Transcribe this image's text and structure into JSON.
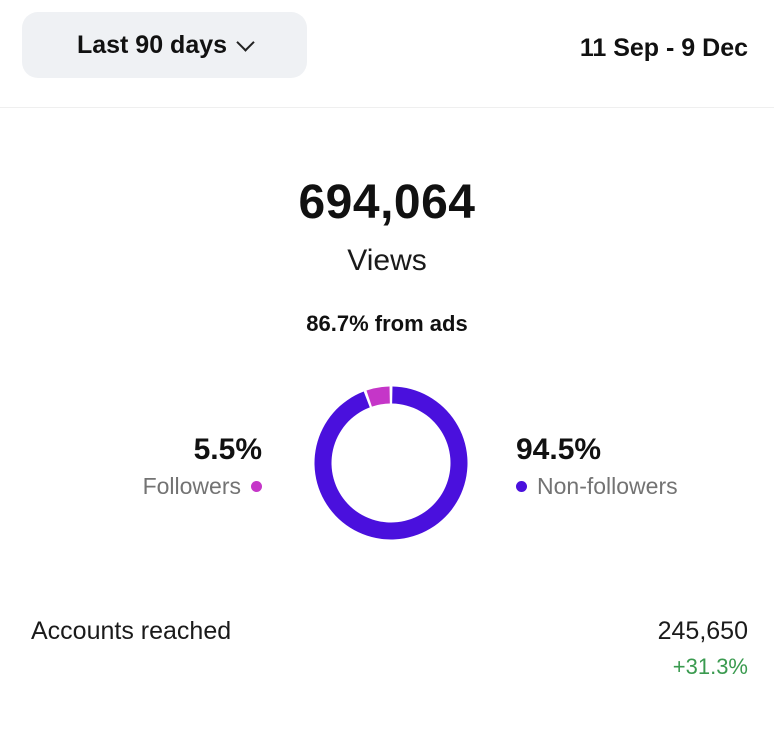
{
  "filter": {
    "range_label": "Last 90 days",
    "date_range": "11 Sep - 9 Dec"
  },
  "views": {
    "total": "694,064",
    "label": "Views",
    "ads_share_text": "86.7% from ads"
  },
  "audience": {
    "followers": {
      "percent_text": "5.5%",
      "label": "Followers",
      "value": 5.5,
      "color": "#c536c8"
    },
    "non_followers": {
      "percent_text": "94.5%",
      "label": "Non-followers",
      "value": 94.5,
      "color": "#4a10dd"
    }
  },
  "accounts_reached": {
    "label": "Accounts reached",
    "value": "245,650",
    "change": "+31.3%",
    "change_color": "#3a9a4f"
  }
}
